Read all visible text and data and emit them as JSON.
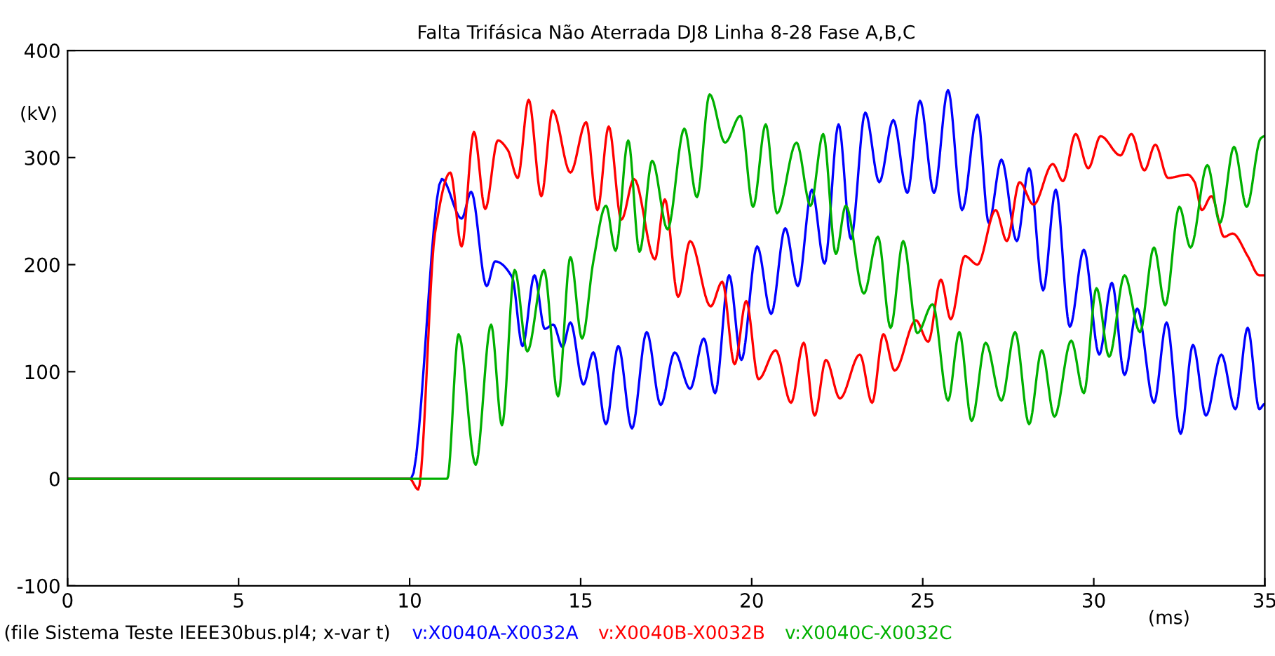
{
  "chart_data": {
    "type": "line",
    "title": "Falta Trifásica Não Aterrada DJ8 Linha 8-28 Fase A,B,C",
    "xlabel": "(ms)",
    "ylabel": "(kV)",
    "xlim": [
      0,
      35
    ],
    "xticks": [
      0,
      5,
      10,
      15,
      20,
      25,
      30,
      35
    ],
    "ylim": [
      -100,
      400
    ],
    "yticks": [
      -100,
      0,
      100,
      200,
      300,
      400
    ],
    "grid": false,
    "legend": "bottom",
    "annotations": [
      "(file Sistema Teste IEEE30bus.pl4; x-var t)"
    ],
    "series": [
      {
        "name": "v:X0040A-X0032A",
        "color": "#0000ff",
        "x": [
          0,
          10.04,
          10.94,
          11.52,
          11.8,
          12.25,
          12.5,
          13.0,
          13.3,
          13.65,
          13.95,
          14.2,
          14.47,
          14.7,
          15.08,
          15.37,
          15.74,
          16.1,
          16.5,
          16.93,
          17.34,
          17.75,
          18.2,
          18.6,
          18.93,
          19.34,
          19.7,
          20.16,
          20.57,
          20.98,
          21.35,
          21.76,
          22.13,
          22.54,
          22.9,
          23.32,
          23.73,
          24.14,
          24.55,
          24.92,
          25.33,
          25.74,
          26.15,
          26.6,
          26.93,
          27.3,
          27.75,
          28.11,
          28.52,
          28.89,
          29.3,
          29.71,
          30.16,
          30.53,
          30.9,
          31.27,
          31.76,
          32.13,
          32.54,
          32.9,
          33.28,
          33.73,
          34.14,
          34.5,
          34.84,
          35
        ],
        "values": [
          0,
          0,
          280,
          243,
          268,
          180,
          203,
          188,
          124,
          190,
          140,
          144,
          123,
          146,
          88,
          118,
          51,
          124,
          47,
          137,
          69,
          118,
          84,
          131,
          80,
          190,
          111,
          217,
          154,
          234,
          180,
          270,
          201,
          331,
          224,
          342,
          277,
          335,
          267,
          353,
          267,
          363,
          251,
          340,
          239,
          298,
          222,
          290,
          176,
          270,
          142,
          214,
          116,
          183,
          97,
          159,
          71,
          146,
          42,
          125,
          59,
          116,
          65,
          141,
          65,
          70
        ]
      },
      {
        "name": "v:X0040B-X0032B",
        "color": "#ff0000",
        "x": [
          0,
          10.0,
          10.25,
          10.74,
          11.19,
          11.52,
          11.88,
          12.21,
          12.58,
          12.87,
          13.16,
          13.48,
          13.85,
          14.18,
          14.7,
          15.16,
          15.49,
          15.82,
          16.19,
          16.56,
          17.17,
          17.46,
          17.85,
          18.2,
          18.8,
          19.14,
          19.5,
          19.84,
          20.2,
          20.7,
          21.15,
          21.52,
          21.84,
          22.17,
          22.58,
          23.16,
          23.52,
          23.85,
          24.18,
          24.8,
          25.16,
          25.53,
          25.82,
          26.23,
          26.6,
          27.13,
          27.46,
          27.83,
          28.24,
          28.8,
          29.1,
          29.47,
          29.84,
          30.2,
          30.78,
          31.1,
          31.48,
          31.8,
          32.17,
          32.75,
          32.95,
          33.16,
          33.44,
          33.81,
          34.06,
          34.5,
          34.84,
          35
        ],
        "values": [
          0,
          0,
          -10,
          229,
          286,
          217,
          324,
          252,
          316,
          307,
          281,
          354,
          264,
          344,
          286,
          333,
          251,
          329,
          242,
          280,
          205,
          261,
          170,
          222,
          161,
          184,
          107,
          166,
          93,
          120,
          71,
          127,
          59,
          111,
          75,
          116,
          71,
          135,
          101,
          148,
          128,
          186,
          149,
          208,
          200,
          251,
          222,
          277,
          256,
          294,
          278,
          322,
          290,
          320,
          302,
          322,
          288,
          312,
          281,
          284,
          277,
          251,
          264,
          226,
          229,
          208,
          190,
          190
        ]
      },
      {
        "name": "v:X0040C-X0032C",
        "color": "#00b000",
        "x": [
          0,
          11.1,
          11.43,
          11.93,
          12.38,
          12.7,
          13.07,
          13.44,
          13.93,
          14.34,
          14.7,
          15.04,
          15.37,
          15.74,
          16.02,
          16.39,
          16.72,
          17.09,
          17.54,
          18.03,
          18.4,
          18.77,
          19.22,
          19.67,
          20.04,
          20.41,
          20.74,
          21.31,
          21.72,
          22.09,
          22.46,
          22.75,
          23.28,
          23.69,
          24.06,
          24.43,
          24.84,
          25.29,
          25.74,
          26.07,
          26.43,
          26.84,
          27.3,
          27.7,
          28.11,
          28.48,
          28.85,
          29.34,
          29.71,
          30.08,
          30.45,
          30.9,
          31.35,
          31.76,
          32.09,
          32.5,
          32.83,
          33.32,
          33.69,
          34.1,
          34.47,
          34.88,
          35
        ],
        "values": [
          0,
          0,
          135,
          13,
          144,
          50,
          195,
          119,
          195,
          77,
          207,
          131,
          203,
          255,
          213,
          316,
          212,
          297,
          233,
          327,
          263,
          359,
          314,
          339,
          254,
          331,
          248,
          314,
          255,
          322,
          210,
          255,
          173,
          226,
          141,
          222,
          136,
          163,
          73,
          137,
          54,
          127,
          73,
          137,
          51,
          120,
          58,
          129,
          80,
          178,
          114,
          190,
          137,
          216,
          162,
          254,
          216,
          293,
          239,
          310,
          254,
          318,
          320
        ]
      }
    ]
  }
}
